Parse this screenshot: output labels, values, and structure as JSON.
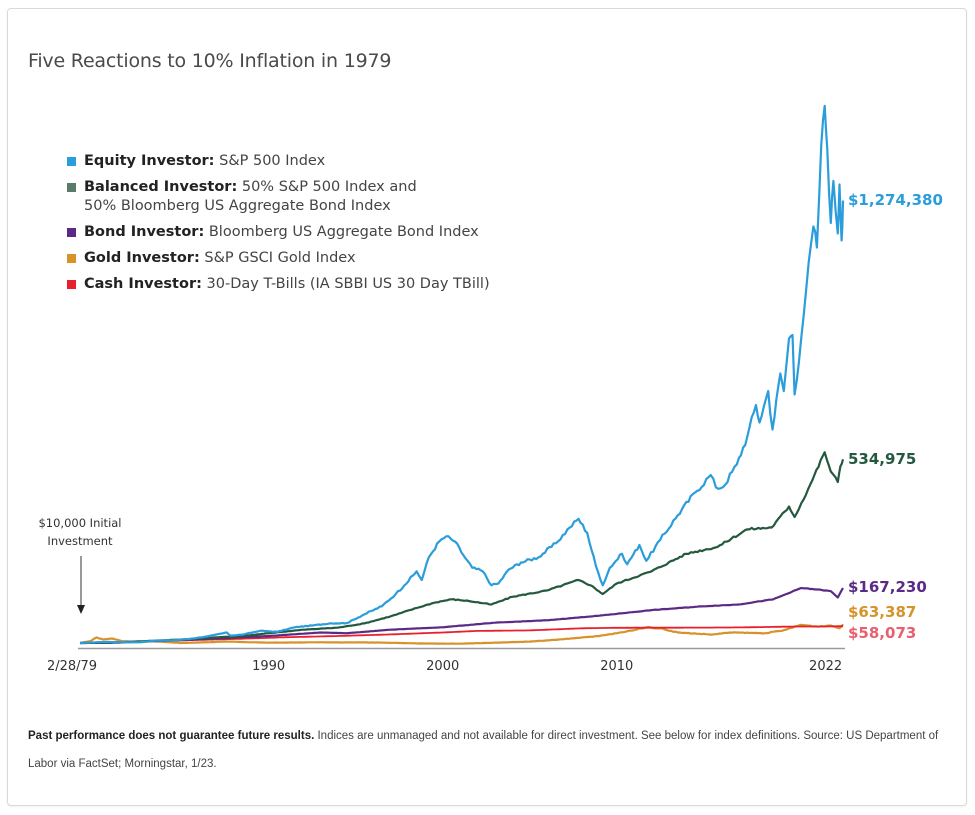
{
  "title": "Five Reactions to 10% Inflation in 1979",
  "legend": [
    {
      "name": "Equity Investor:",
      "desc": "S&P 500 Index",
      "desc2": "",
      "color": "#2b9ddb"
    },
    {
      "name": "Balanced Investor:",
      "desc": "50% S&P 500 Index and",
      "desc2": "50% Bloomberg US Aggregate Bond Index",
      "color": "#5a7a6c"
    },
    {
      "name": "Bond Investor:",
      "desc": "Bloomberg US Aggregate Bond Index",
      "desc2": "",
      "color": "#5b2a86"
    },
    {
      "name": "Gold Investor:",
      "desc": "S&P GSCI Gold Index",
      "desc2": "",
      "color": "#d8922a"
    },
    {
      "name": "Cash Investor:",
      "desc": "30-Day T-Bills (IA SBBI US 30 Day TBill)",
      "desc2": "",
      "color": "#e8202e"
    }
  ],
  "annotation": {
    "line1": "$10,000 Initial",
    "line2": "Investment"
  },
  "footnote": {
    "bold": "Past performance does not guarantee future results.",
    "text": " Indices are unmanaged and not available for direct investment. See below for index definitions. Source: US Department of Labor via FactSet; Morningstar, 1/23."
  },
  "chart_data": {
    "type": "line",
    "title": "Five Reactions to 10% Inflation in 1979",
    "xlabel": "",
    "ylabel": "",
    "x_ticks": [
      "2/28/79",
      "1990",
      "2000",
      "2010",
      "2022"
    ],
    "x_tick_values": [
      1979.16,
      1990,
      2000,
      2010,
      2022
    ],
    "xlim": [
      1979.16,
      2023.0
    ],
    "ylim": [
      0,
      1600000
    ],
    "y_scale": "linear",
    "grid": false,
    "legend_position": "top-left",
    "initial_investment": 10000,
    "series": [
      {
        "name": "Equity Investor",
        "color": "#2b9ddb",
        "end_label": "$1,274,380",
        "label_color": "#2b9ddb",
        "points": [
          [
            1979.16,
            10000
          ],
          [
            1980.5,
            13000
          ],
          [
            1981.5,
            12500
          ],
          [
            1982.6,
            12000
          ],
          [
            1983.5,
            17000
          ],
          [
            1984.5,
            17500
          ],
          [
            1985.5,
            22000
          ],
          [
            1986.5,
            29000
          ],
          [
            1987.6,
            40000
          ],
          [
            1987.8,
            31000
          ],
          [
            1988.5,
            34000
          ],
          [
            1989.5,
            45000
          ],
          [
            1990.5,
            42000
          ],
          [
            1991.5,
            55000
          ],
          [
            1992.5,
            60000
          ],
          [
            1993.5,
            66000
          ],
          [
            1994.5,
            67000
          ],
          [
            1995.5,
            92000
          ],
          [
            1996.5,
            115000
          ],
          [
            1997.3,
            150000
          ],
          [
            1997.8,
            175000
          ],
          [
            1998.5,
            215000
          ],
          [
            1998.8,
            190000
          ],
          [
            1999.2,
            255000
          ],
          [
            1999.8,
            300000
          ],
          [
            2000.2,
            315000
          ],
          [
            2000.7,
            300000
          ],
          [
            2001.2,
            260000
          ],
          [
            2001.7,
            225000
          ],
          [
            2002.3,
            215000
          ],
          [
            2002.8,
            175000
          ],
          [
            2003.2,
            180000
          ],
          [
            2003.8,
            220000
          ],
          [
            2004.5,
            240000
          ],
          [
            2005.5,
            255000
          ],
          [
            2006.5,
            295000
          ],
          [
            2007.3,
            340000
          ],
          [
            2007.8,
            365000
          ],
          [
            2008.3,
            325000
          ],
          [
            2008.8,
            230000
          ],
          [
            2009.2,
            175000
          ],
          [
            2009.6,
            225000
          ],
          [
            2010.3,
            265000
          ],
          [
            2010.6,
            235000
          ],
          [
            2011.3,
            290000
          ],
          [
            2011.7,
            245000
          ],
          [
            2012.5,
            305000
          ],
          [
            2013.5,
            375000
          ],
          [
            2014.5,
            440000
          ],
          [
            2015.4,
            490000
          ],
          [
            2015.7,
            455000
          ],
          [
            2016.1,
            455000
          ],
          [
            2016.9,
            520000
          ],
          [
            2017.5,
            600000
          ],
          [
            2018.0,
            690000
          ],
          [
            2018.2,
            640000
          ],
          [
            2018.7,
            730000
          ],
          [
            2018.95,
            620000
          ],
          [
            2019.4,
            780000
          ],
          [
            2019.6,
            730000
          ],
          [
            2019.9,
            880000
          ],
          [
            2020.1,
            890000
          ],
          [
            2020.22,
            720000
          ],
          [
            2020.6,
            880000
          ],
          [
            2020.9,
            1030000
          ],
          [
            2021.3,
            1200000
          ],
          [
            2021.5,
            1140000
          ],
          [
            2021.75,
            1430000
          ],
          [
            2021.95,
            1545000
          ],
          [
            2022.1,
            1420000
          ],
          [
            2022.3,
            1210000
          ],
          [
            2022.45,
            1330000
          ],
          [
            2022.7,
            1180000
          ],
          [
            2022.8,
            1320000
          ],
          [
            2022.92,
            1160000
          ],
          [
            2023.0,
            1274380
          ]
        ]
      },
      {
        "name": "Balanced Investor",
        "color": "#24593f",
        "end_label": "534,975",
        "label_color": "#24593f",
        "points": [
          [
            1979.16,
            10000
          ],
          [
            1981,
            11500
          ],
          [
            1983,
            15500
          ],
          [
            1985,
            20000
          ],
          [
            1987.6,
            28000
          ],
          [
            1987.8,
            26000
          ],
          [
            1990,
            38000
          ],
          [
            1992,
            48000
          ],
          [
            1994,
            54000
          ],
          [
            1995.5,
            66000
          ],
          [
            1997,
            86000
          ],
          [
            1998.5,
            110000
          ],
          [
            1999.5,
            125000
          ],
          [
            2000.5,
            135000
          ],
          [
            2001.5,
            130000
          ],
          [
            2002.8,
            120000
          ],
          [
            2004,
            142000
          ],
          [
            2006,
            160000
          ],
          [
            2007.8,
            190000
          ],
          [
            2008.5,
            175000
          ],
          [
            2009.2,
            150000
          ],
          [
            2010,
            180000
          ],
          [
            2012,
            215000
          ],
          [
            2014,
            265000
          ],
          [
            2015.8,
            285000
          ],
          [
            2017.5,
            335000
          ],
          [
            2018.9,
            340000
          ],
          [
            2019.9,
            400000
          ],
          [
            2020.22,
            370000
          ],
          [
            2021,
            450000
          ],
          [
            2021.95,
            555000
          ],
          [
            2022.3,
            500000
          ],
          [
            2022.7,
            470000
          ],
          [
            2022.85,
            515000
          ],
          [
            2023.0,
            534975
          ]
        ]
      },
      {
        "name": "Bond Investor",
        "color": "#5b2a86",
        "end_label": "$167,230",
        "label_color": "#5b2a86",
        "points": [
          [
            1979.16,
            10000
          ],
          [
            1981,
            10500
          ],
          [
            1983,
            14500
          ],
          [
            1985,
            18500
          ],
          [
            1987,
            23000
          ],
          [
            1990,
            30000
          ],
          [
            1993,
            40000
          ],
          [
            1994.5,
            38000
          ],
          [
            1997,
            48000
          ],
          [
            2000,
            55000
          ],
          [
            2003,
            68000
          ],
          [
            2006,
            75000
          ],
          [
            2009,
            88000
          ],
          [
            2012,
            104000
          ],
          [
            2015,
            115000
          ],
          [
            2017,
            120000
          ],
          [
            2019,
            135000
          ],
          [
            2020.6,
            167000
          ],
          [
            2021.5,
            163000
          ],
          [
            2022.3,
            158000
          ],
          [
            2022.7,
            140000
          ],
          [
            2023.0,
            167230
          ]
        ]
      },
      {
        "name": "Gold Investor",
        "color": "#d8922a",
        "end_label": "$63,387",
        "label_color": "#d8922a",
        "points": [
          [
            1979.16,
            10000
          ],
          [
            1979.8,
            16000
          ],
          [
            1980.1,
            26000
          ],
          [
            1980.5,
            20000
          ],
          [
            1981,
            23000
          ],
          [
            1981.6,
            15000
          ],
          [
            1982.5,
            13000
          ],
          [
            1983.3,
            15000
          ],
          [
            1985,
            10000
          ],
          [
            1987.5,
            14000
          ],
          [
            1990,
            11000
          ],
          [
            1993,
            12000
          ],
          [
            1996,
            11500
          ],
          [
            1999,
            8500
          ],
          [
            2001,
            8000
          ],
          [
            2003,
            11000
          ],
          [
            2005,
            14000
          ],
          [
            2006.5,
            19000
          ],
          [
            2008,
            26000
          ],
          [
            2009,
            30000
          ],
          [
            2010.5,
            42000
          ],
          [
            2011.7,
            55000
          ],
          [
            2012.5,
            52000
          ],
          [
            2013.5,
            40000
          ],
          [
            2015.5,
            34000
          ],
          [
            2016.5,
            40000
          ],
          [
            2018.5,
            38000
          ],
          [
            2019.5,
            45000
          ],
          [
            2020.6,
            62000
          ],
          [
            2021.5,
            57000
          ],
          [
            2022.3,
            60000
          ],
          [
            2022.8,
            52000
          ],
          [
            2023.0,
            63387
          ]
        ]
      },
      {
        "name": "Cash Investor",
        "color": "#e8202e",
        "end_label": "$58,073",
        "label_color": "#e86070",
        "points": [
          [
            1979.16,
            10000
          ],
          [
            1982,
            13500
          ],
          [
            1985,
            17500
          ],
          [
            1988,
            21500
          ],
          [
            1991,
            26500
          ],
          [
            1994,
            30000
          ],
          [
            1997,
            34500
          ],
          [
            2000,
            40000
          ],
          [
            2002,
            44500
          ],
          [
            2005,
            46000
          ],
          [
            2008,
            52000
          ],
          [
            2010,
            53500
          ],
          [
            2015,
            54000
          ],
          [
            2017,
            54500
          ],
          [
            2019,
            56000
          ],
          [
            2020.5,
            57200
          ],
          [
            2022,
            57200
          ],
          [
            2023.0,
            58073
          ]
        ]
      }
    ]
  }
}
